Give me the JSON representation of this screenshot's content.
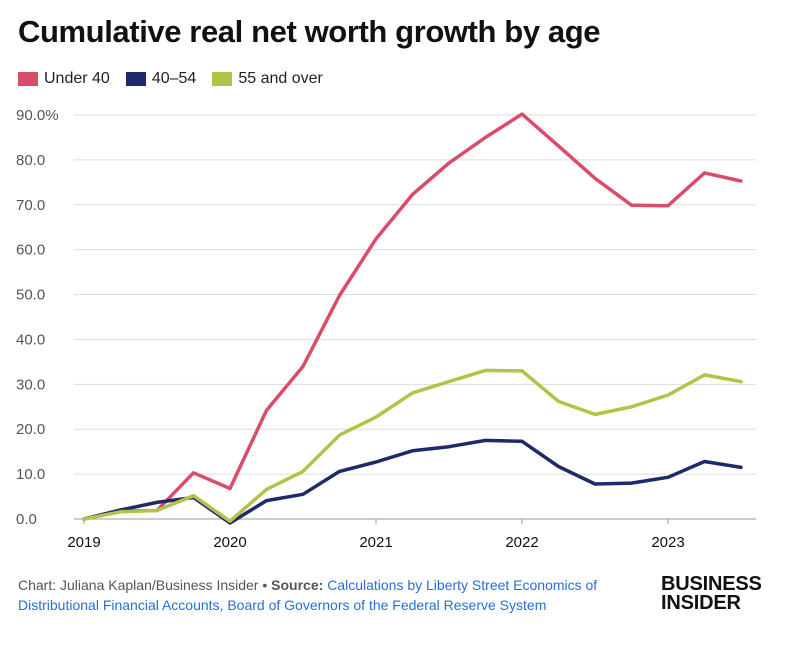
{
  "chart_data": {
    "type": "line",
    "title": "Cumulative real net worth growth by age",
    "ylim": [
      0,
      90
    ],
    "y_ticks": [
      "0.0",
      "10.0",
      "20.0",
      "30.0",
      "40.0",
      "50.0",
      "60.0",
      "70.0",
      "80.0",
      "90.0%"
    ],
    "x_ticks": [
      "2019",
      "2020",
      "2021",
      "2022",
      "2023"
    ],
    "x_tick_values": [
      2019,
      2020,
      2021,
      2022,
      2023
    ],
    "grid": true,
    "legend_position": "top-left",
    "x": [
      2019.0,
      2019.25,
      2019.5,
      2019.75,
      2020.0,
      2020.25,
      2020.5,
      2020.75,
      2021.0,
      2021.25,
      2021.5,
      2021.75,
      2022.0,
      2022.25,
      2022.5,
      2022.75,
      2023.0,
      2023.25,
      2023.5
    ],
    "series": [
      {
        "name": "Under 40",
        "color": "#d94d6a",
        "values": [
          0.0,
          1.8,
          1.9,
          10.3,
          6.8,
          24.2,
          34.0,
          49.8,
          62.4,
          72.3,
          79.3,
          85.0,
          90.2,
          83.1,
          75.9,
          69.9,
          69.8,
          77.1,
          75.3
        ]
      },
      {
        "name": "40–54",
        "color": "#1f2a6b",
        "values": [
          0.0,
          2.0,
          3.7,
          4.8,
          -0.9,
          4.1,
          5.5,
          10.6,
          12.7,
          15.2,
          16.1,
          17.5,
          17.3,
          11.7,
          7.8,
          8.0,
          9.3,
          12.8,
          11.5
        ]
      },
      {
        "name": "55 and over",
        "color": "#b5c24a",
        "values": [
          0.0,
          1.6,
          1.9,
          5.2,
          -0.5,
          6.6,
          10.6,
          18.7,
          22.7,
          28.1,
          30.6,
          33.1,
          33.0,
          26.2,
          23.3,
          25.0,
          27.6,
          32.1,
          30.6
        ]
      }
    ]
  },
  "footer": {
    "credit_label": "Chart:",
    "credit_name": "Juliana Kaplan/Business Insider",
    "separator": "•",
    "source_label": "Source:",
    "source_text": "Calculations by Liberty Street Economics of Distributional Financial Accounts, Board of Governors of the Federal Reserve System"
  },
  "logo": {
    "line1": "BUSINESS",
    "line2": "INSIDER"
  }
}
